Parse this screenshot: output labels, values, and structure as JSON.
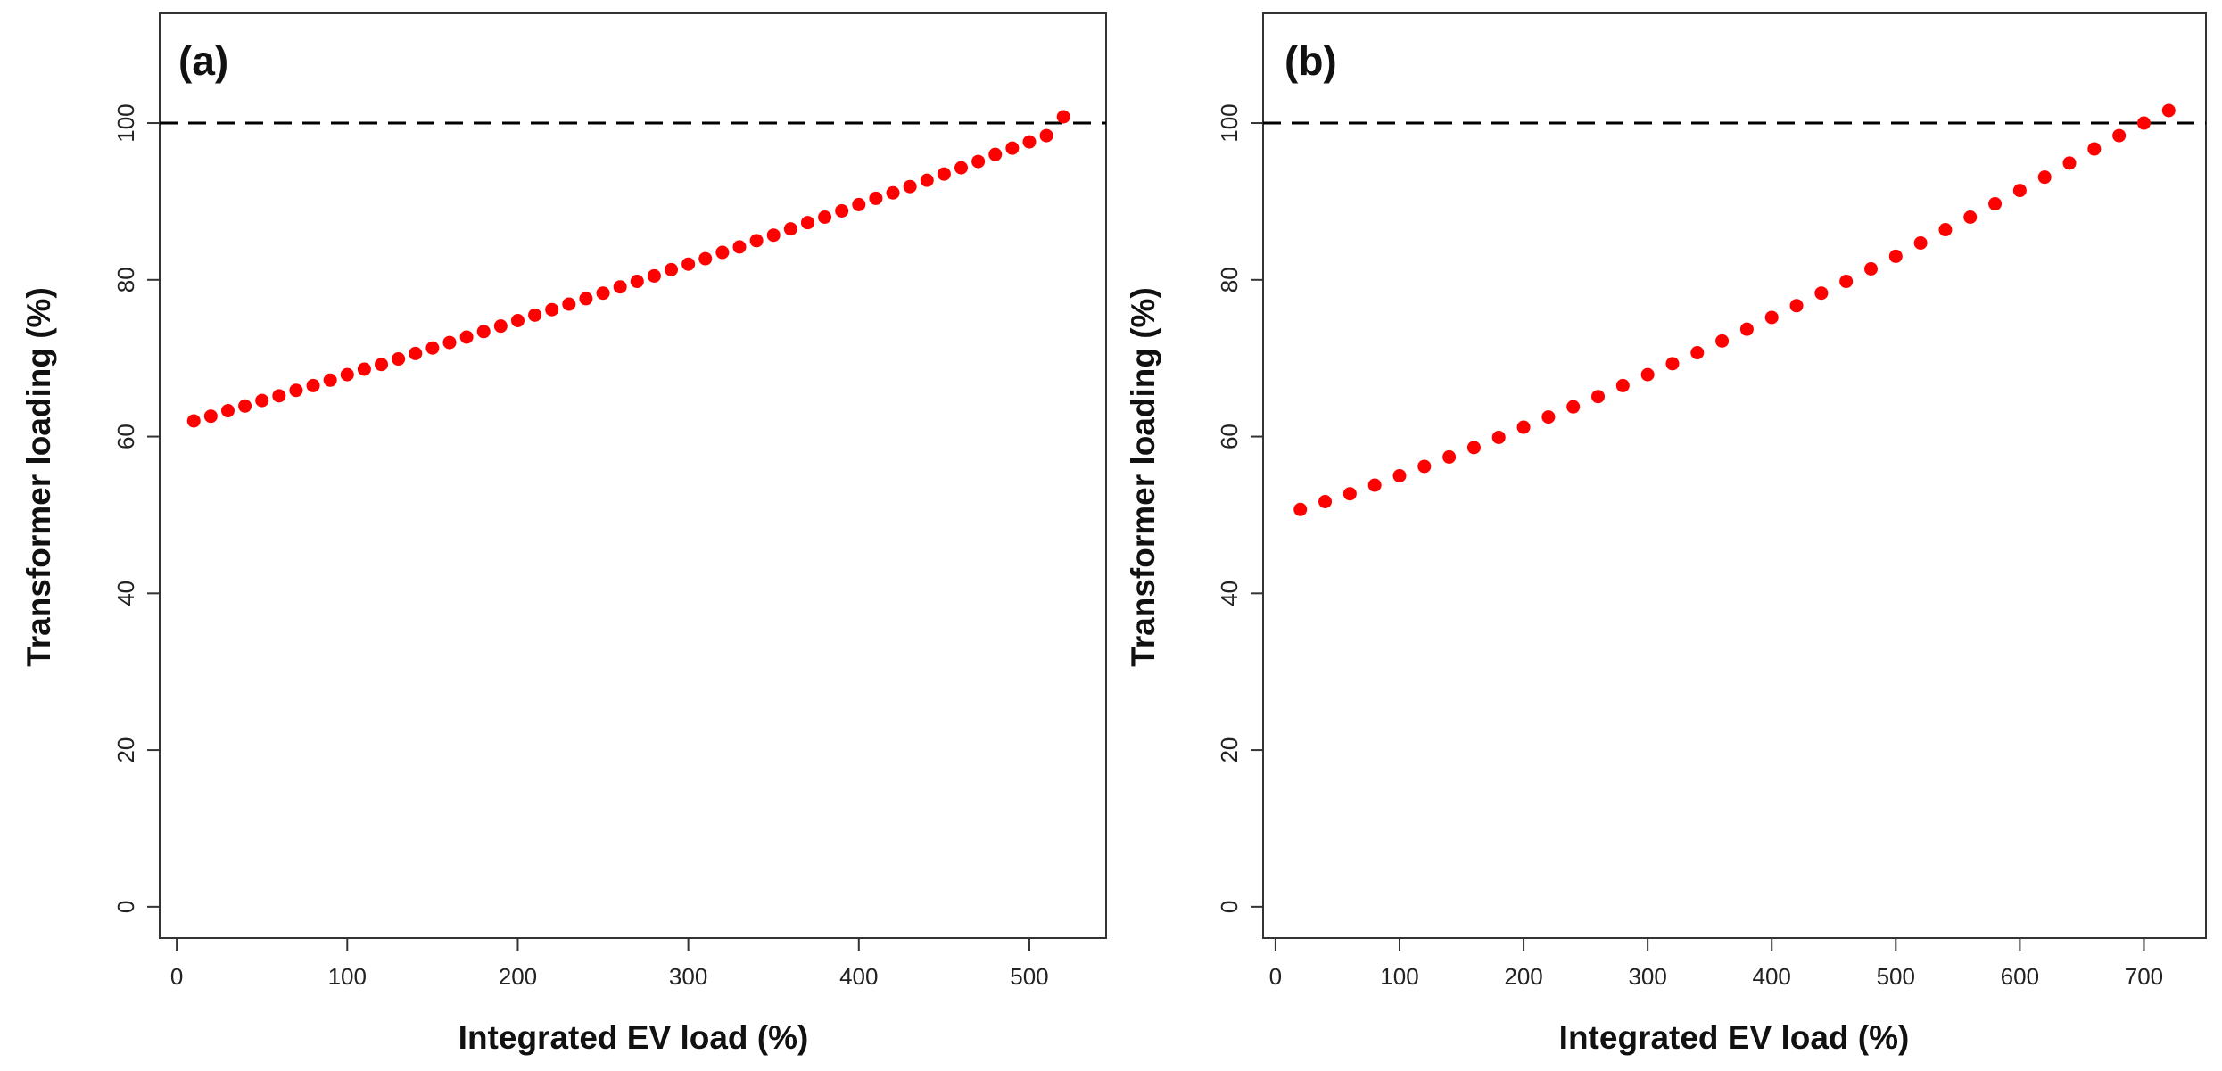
{
  "chart_data": [
    {
      "type": "scatter",
      "panel_label": "(a)",
      "xlabel": "Integrated EV load (%)",
      "ylabel": "Transformer loading (%)",
      "xlim": [
        -10,
        545
      ],
      "ylim": [
        -4,
        114
      ],
      "xticks": [
        0,
        100,
        200,
        300,
        400,
        500
      ],
      "yticks": [
        0,
        20,
        40,
        60,
        80,
        100
      ],
      "marker_color": "#ff0000",
      "reference_line": {
        "y": 100,
        "style": "dashed",
        "color": "#000000"
      },
      "x": [
        10,
        20,
        30,
        40,
        50,
        60,
        70,
        80,
        90,
        100,
        110,
        120,
        130,
        140,
        150,
        160,
        170,
        180,
        190,
        200,
        210,
        220,
        230,
        240,
        250,
        260,
        270,
        280,
        290,
        300,
        310,
        320,
        330,
        340,
        350,
        360,
        370,
        380,
        390,
        400,
        410,
        420,
        430,
        440,
        450,
        460,
        470,
        480,
        490,
        500,
        510,
        520
      ],
      "y": [
        62.0,
        62.6,
        63.3,
        63.9,
        64.6,
        65.2,
        65.9,
        66.5,
        67.2,
        67.9,
        68.6,
        69.2,
        69.9,
        70.6,
        71.3,
        72.0,
        72.7,
        73.4,
        74.1,
        74.8,
        75.5,
        76.2,
        76.9,
        77.6,
        78.3,
        79.1,
        79.8,
        80.5,
        81.3,
        82.0,
        82.7,
        83.5,
        84.2,
        85.0,
        85.7,
        86.5,
        87.3,
        88.0,
        88.8,
        89.6,
        90.4,
        91.1,
        91.9,
        92.7,
        93.5,
        94.3,
        95.1,
        96.0,
        96.8,
        97.6,
        98.4,
        100.8
      ]
    },
    {
      "type": "scatter",
      "panel_label": "(b)",
      "xlabel": "Integrated EV load (%)",
      "ylabel": "Transformer loading (%)",
      "xlim": [
        -10,
        750
      ],
      "ylim": [
        -4,
        114
      ],
      "xticks": [
        0,
        100,
        200,
        300,
        400,
        500,
        600,
        700
      ],
      "yticks": [
        0,
        20,
        40,
        60,
        80,
        100
      ],
      "marker_color": "#ff0000",
      "reference_line": {
        "y": 100,
        "style": "dashed",
        "color": "#000000"
      },
      "x": [
        20,
        40,
        60,
        80,
        100,
        120,
        140,
        160,
        180,
        200,
        220,
        240,
        260,
        280,
        300,
        320,
        340,
        360,
        380,
        400,
        420,
        440,
        460,
        480,
        500,
        520,
        540,
        560,
        580,
        600,
        620,
        640,
        660,
        680,
        700,
        720
      ],
      "y": [
        50.7,
        51.7,
        52.7,
        53.8,
        55.0,
        56.2,
        57.4,
        58.6,
        59.9,
        61.2,
        62.5,
        63.8,
        65.1,
        66.5,
        67.9,
        69.3,
        70.7,
        72.2,
        73.7,
        75.2,
        76.7,
        78.3,
        79.8,
        81.4,
        83.0,
        84.7,
        86.4,
        88.0,
        89.7,
        91.4,
        93.1,
        94.9,
        96.7,
        98.4,
        100.0,
        101.6
      ]
    }
  ]
}
